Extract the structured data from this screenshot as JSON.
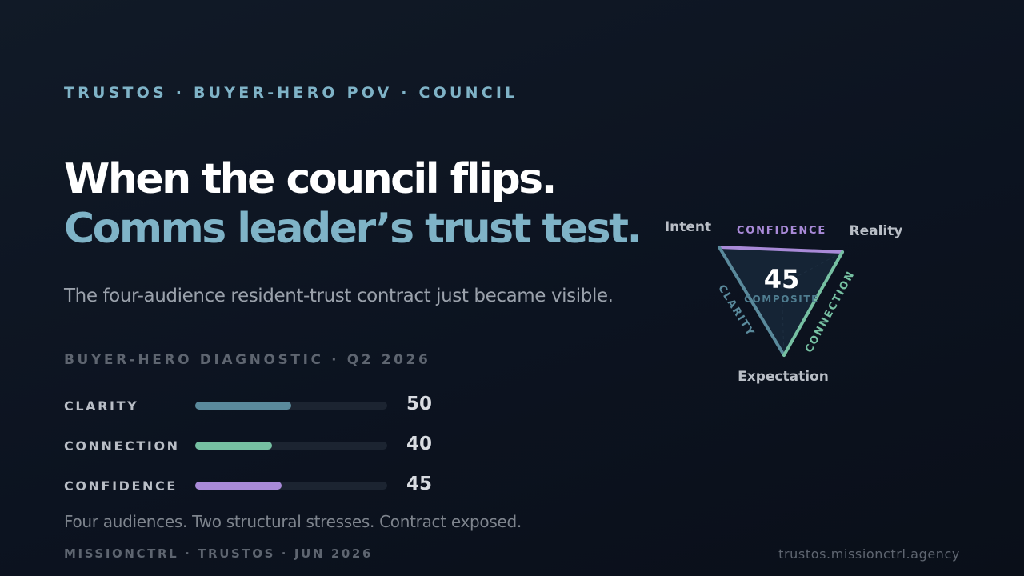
{
  "eyebrow": "TRUSTOS · BUYER-HERO POV · COUNCIL",
  "headline": {
    "line1": "When the council flips.",
    "line2": "Comms leader’s trust test."
  },
  "subtitle": "The four-audience resident-trust contract just became visible.",
  "diagnostic": {
    "label": "BUYER-HERO DIAGNOSTIC · Q2 2026",
    "metrics": [
      {
        "name": "CLARITY",
        "value": 50,
        "color": "#5a8a9c"
      },
      {
        "name": "CONNECTION",
        "value": 40,
        "color": "#76c0a2"
      },
      {
        "name": "CONFIDENCE",
        "value": 45,
        "color": "#a98ad8"
      }
    ]
  },
  "triangle": {
    "composite_value": "45",
    "composite_label": "COMPOSITE",
    "vertices": {
      "top_left": "Intent",
      "top_right": "Reality",
      "bottom": "Expectation"
    },
    "edges": {
      "top": "CONFIDENCE",
      "left": "CLARITY",
      "right": "CONNECTION"
    },
    "colors": {
      "confidence": "#a98ad8",
      "clarity": "#5a8a9c",
      "connection": "#76c0a2"
    }
  },
  "tagline": "Four audiences. Two structural stresses. Contract exposed.",
  "footer": {
    "left": "MISSIONCTRL · TRUSTOS · JUN 2026",
    "right": "trustos.missionctrl.agency"
  }
}
